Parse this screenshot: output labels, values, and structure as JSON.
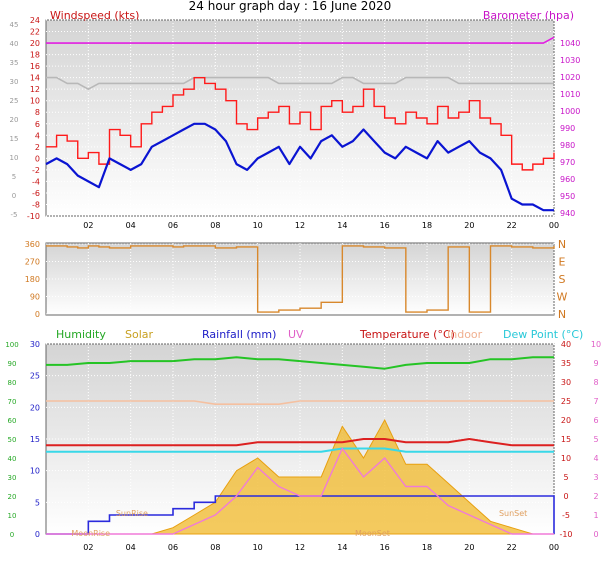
{
  "title": "24 hour graph day : 16 June 2020",
  "x_ticks": [
    "02",
    "04",
    "06",
    "08",
    "10",
    "12",
    "14",
    "16",
    "18",
    "20",
    "22",
    "00"
  ],
  "colors": {
    "wind_avg": "#0a14d2",
    "wind_gust": "#ff1a1a",
    "wind_grey": "#b8b8b8",
    "baro": "#e11fe1",
    "direction": "#d8882c",
    "humidity": "#25c425",
    "solar": "#f0b828",
    "rainfall": "#2b2bdd",
    "uv": "#f07ad8",
    "temperature": "#dc2020",
    "indoor": "#f5c0a0",
    "dewpoint": "#38d8e8"
  },
  "chart_data": [
    {
      "type": "line",
      "name": "wind-baro",
      "title": "Windspeed (kts)",
      "right_title": "Barometer (hpa)",
      "y_left": [
        -10,
        -8,
        -6,
        -4,
        -2,
        0,
        2,
        4,
        6,
        8,
        10,
        12,
        14,
        16,
        18,
        20,
        22,
        24
      ],
      "y_left_labels": [
        "-10",
        "-8",
        "-6",
        "-4",
        "-2",
        "0",
        "2",
        "4",
        "6",
        "8",
        "10",
        "12",
        "14",
        "16",
        "18",
        "20",
        "22",
        "24"
      ],
      "y_right_labels": [
        "940",
        "950",
        "960",
        "970",
        "980",
        "990",
        "1000",
        "1010",
        "1020",
        "1030",
        "1040"
      ],
      "y_outer_labels": [
        "-5",
        "0",
        "5",
        "10",
        "15",
        "20",
        "25",
        "30",
        "35",
        "40",
        "45"
      ],
      "x": [
        0.0,
        0.5,
        1.0,
        1.5,
        2.0,
        2.5,
        3.0,
        3.5,
        4.0,
        4.5,
        5.0,
        5.5,
        6.0,
        6.5,
        7.0,
        7.5,
        8.0,
        8.5,
        9.0,
        9.5,
        10.0,
        10.5,
        11.0,
        11.5,
        12.0,
        12.5,
        13.0,
        13.5,
        14.0,
        14.5,
        15.0,
        15.5,
        16.0,
        16.5,
        17.0,
        17.5,
        18.0,
        18.5,
        19.0,
        19.5,
        20.0,
        20.5,
        21.0,
        21.5,
        22.0,
        22.5,
        23.0,
        23.5,
        24.0
      ],
      "series": [
        {
          "key": "wind_grey",
          "values": [
            14,
            14,
            13,
            13,
            12,
            13,
            13,
            13,
            13,
            13,
            13,
            13,
            13,
            13,
            14,
            14,
            14,
            14,
            14,
            14,
            14,
            14,
            13,
            13,
            13,
            13,
            13,
            13,
            14,
            14,
            13,
            13,
            13,
            13,
            14,
            14,
            14,
            14,
            14,
            13,
            13,
            13,
            13,
            13,
            13,
            13,
            13,
            13,
            13
          ]
        },
        {
          "key": "baro_on_left",
          "values": [
            20,
            20,
            20,
            20,
            20,
            20,
            20,
            20,
            20,
            20,
            20,
            20,
            20,
            20,
            20,
            20,
            20,
            20,
            20,
            20,
            20,
            20,
            20,
            20,
            20,
            20,
            20,
            20,
            20,
            20,
            20,
            20,
            20,
            20,
            20,
            20,
            20,
            20,
            20,
            20,
            20,
            20,
            20,
            20,
            20,
            20,
            20,
            20,
            21
          ]
        },
        {
          "key": "wind_gust",
          "values": [
            2,
            4,
            3,
            0,
            1,
            -1,
            5,
            4,
            2,
            6,
            8,
            9,
            11,
            12,
            14,
            13,
            12,
            10,
            6,
            5,
            7,
            8,
            9,
            6,
            8,
            5,
            9,
            10,
            8,
            9,
            12,
            9,
            7,
            6,
            8,
            7,
            6,
            9,
            7,
            8,
            10,
            7,
            6,
            4,
            -1,
            -2,
            -1,
            0,
            1
          ]
        },
        {
          "key": "wind_avg",
          "values": [
            -1,
            0,
            -1,
            -3,
            -4,
            -5,
            0,
            -1,
            -2,
            -1,
            2,
            3,
            4,
            5,
            6,
            6,
            5,
            3,
            -1,
            -2,
            0,
            1,
            2,
            -1,
            2,
            0,
            3,
            4,
            2,
            3,
            5,
            3,
            1,
            0,
            2,
            1,
            0,
            3,
            1,
            2,
            3,
            1,
            0,
            -2,
            -7,
            -8,
            -8,
            -9,
            -9
          ]
        }
      ]
    },
    {
      "type": "line",
      "name": "wind-direction",
      "y_labels": [
        "0",
        "90",
        "180",
        "270",
        "360"
      ],
      "compass": [
        "N",
        "W",
        "S",
        "E",
        "N"
      ],
      "x": [
        0,
        1,
        1.5,
        2,
        2.5,
        3,
        4,
        5,
        6,
        6.5,
        7,
        8,
        9,
        10,
        11,
        12,
        13,
        14,
        15,
        16,
        17,
        18,
        19,
        20,
        21,
        22,
        23,
        24
      ],
      "series": [
        {
          "key": "direction",
          "values": [
            350,
            345,
            340,
            350,
            345,
            340,
            350,
            350,
            345,
            350,
            350,
            340,
            345,
            10,
            20,
            30,
            60,
            350,
            345,
            340,
            10,
            20,
            345,
            10,
            350,
            345,
            340,
            350
          ]
        }
      ]
    },
    {
      "type": "line",
      "name": "multi",
      "legend": [
        "Humidity",
        "Solar",
        "Rainfall (mm)",
        "UV",
        "Temperature (°C)",
        "Indoor",
        "Dew Point (°C)"
      ],
      "y_outer_labels": [
        "0",
        "10",
        "20",
        "30",
        "40",
        "50",
        "60",
        "70",
        "80",
        "90",
        "100"
      ],
      "y_left_labels": [
        "0",
        "5",
        "10",
        "15",
        "20",
        "25",
        "30"
      ],
      "y_right_labels": [
        "-10",
        "-5",
        "0",
        "5",
        "10",
        "15",
        "20",
        "25",
        "30",
        "35",
        "40"
      ],
      "y_uv_labels": [
        "0",
        "1",
        "2",
        "3",
        "4",
        "5",
        "6",
        "7",
        "8",
        "9",
        "10"
      ],
      "annotations": [
        "SunRise",
        "SunSet",
        "MoonRise",
        "MoonSet"
      ],
      "x": [
        0,
        1,
        2,
        3,
        4,
        5,
        6,
        7,
        8,
        9,
        10,
        11,
        12,
        13,
        14,
        15,
        16,
        17,
        18,
        19,
        20,
        21,
        22,
        23,
        24
      ],
      "series": [
        {
          "key": "humidity",
          "values": [
            89,
            89,
            90,
            90,
            91,
            91,
            91,
            92,
            92,
            93,
            92,
            92,
            91,
            90,
            89,
            88,
            87,
            89,
            90,
            90,
            90,
            92,
            92,
            93,
            93
          ]
        },
        {
          "key": "indoor",
          "values": [
            21,
            21,
            21,
            21,
            21,
            21,
            21,
            21,
            20.5,
            20.5,
            20.5,
            20.5,
            21,
            21,
            21,
            21,
            21,
            21,
            21,
            21,
            21,
            21,
            21,
            21,
            21
          ]
        },
        {
          "key": "temperature",
          "values": [
            14,
            14,
            14,
            14,
            14,
            14,
            14,
            14,
            14,
            14,
            14.5,
            14.5,
            14.5,
            14.5,
            14.5,
            15,
            15,
            14.5,
            14.5,
            14.5,
            15,
            14.5,
            14,
            14,
            14
          ]
        },
        {
          "key": "dewpoint",
          "values": [
            13,
            13,
            13,
            13,
            13,
            13,
            13,
            13,
            13,
            13,
            13,
            13,
            13,
            13,
            13.5,
            13.5,
            13.5,
            13,
            13,
            13,
            13,
            13,
            13,
            13,
            13
          ]
        },
        {
          "key": "rainfall",
          "values": [
            0,
            0,
            2,
            3,
            3,
            3,
            4,
            5,
            6,
            6,
            6,
            6,
            6,
            6,
            6,
            6,
            6,
            6,
            6,
            6,
            6,
            6,
            6,
            6,
            0
          ]
        },
        {
          "key": "solar",
          "values": [
            0,
            0,
            0,
            0,
            0,
            0,
            1,
            3,
            5,
            10,
            12,
            9,
            9,
            9,
            17,
            12,
            18,
            11,
            11,
            8,
            5,
            2,
            1,
            0,
            0
          ]
        },
        {
          "key": "uv",
          "values": [
            0,
            0,
            0,
            0,
            0,
            0,
            0,
            0.5,
            1,
            2,
            3.5,
            2.5,
            2,
            2,
            4.5,
            3,
            4,
            2.5,
            2.5,
            1.5,
            1,
            0.5,
            0,
            0,
            0
          ]
        }
      ]
    }
  ]
}
